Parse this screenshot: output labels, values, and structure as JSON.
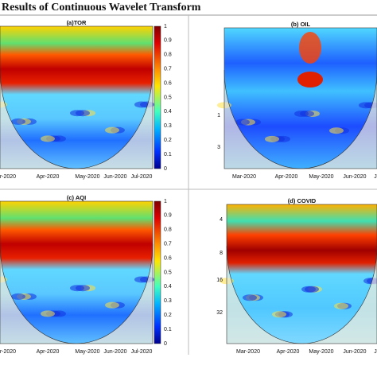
{
  "header": {
    "title": "Results of Continuous Wavelet Transform"
  },
  "panels": [
    {
      "title": "(a)TOR",
      "x_labels": [
        "ar-2020",
        "Apr-2020",
        "May-2020",
        "Jun-2020",
        "Jul-2020"
      ],
      "y_labels": [],
      "colorbar_ticks": [
        "1",
        "0.9",
        "0.8",
        "0.7",
        "0.6",
        "0.5",
        "0.4",
        "0.3",
        "0.2",
        "0.1",
        "0"
      ]
    },
    {
      "title": "(b) OIL",
      "x_labels": [
        "Mar-2020",
        "Apr-2020",
        "May-2020",
        "Jun-2020",
        "J"
      ],
      "y_labels": [
        "1",
        "3"
      ],
      "colorbar_ticks": []
    },
    {
      "title": "(c) AQI",
      "x_labels": [
        "ar-2020",
        "Apr-2020",
        "May-2020",
        "Jun-2020",
        "Jul-2020"
      ],
      "y_labels": [],
      "colorbar_ticks": [
        "1",
        "0.9",
        "0.8",
        "0.7",
        "0.6",
        "0.5",
        "0.4",
        "0.3",
        "0.2",
        "0.1",
        "0"
      ]
    },
    {
      "title": "(d) COVID",
      "x_labels": [
        "Mar-2020",
        "Apr-2020",
        "May-2020",
        "Jun-2020",
        "J"
      ],
      "y_labels": [
        "4",
        "8",
        "16",
        "32"
      ],
      "colorbar_ticks": []
    }
  ]
}
